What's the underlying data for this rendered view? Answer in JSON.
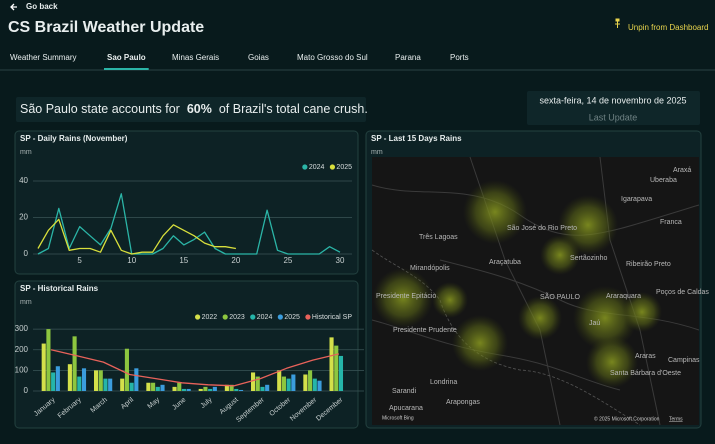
{
  "header": {
    "back": "Go back",
    "title": "CS Brazil Weather Update",
    "unpin": "Unpin from Dashboard"
  },
  "tabs": [
    "Weather Summary",
    "Sao Paulo",
    "Minas Gerais",
    "Goias",
    "Mato Grosso do Sul",
    "Parana",
    "Ports"
  ],
  "active_tab": 1,
  "banner": {
    "prefix": "São Paulo state accounts for",
    "highlight": "60%",
    "suffix": "of Brazil's total cane crush."
  },
  "update": {
    "date": "sexta-feira, 14 de novembro de 2025",
    "label": "Last Update"
  },
  "chart_data": [
    {
      "type": "line",
      "title": "SP - Daily Rains (November)",
      "y_label": "mm",
      "x": [
        1,
        2,
        3,
        4,
        5,
        6,
        7,
        8,
        9,
        10,
        11,
        12,
        13,
        14,
        15,
        16,
        17,
        18,
        19,
        20,
        21,
        22,
        23,
        24,
        25,
        26,
        27,
        28,
        29,
        30
      ],
      "xlim": [
        1,
        30
      ],
      "xticks": [
        5,
        10,
        15,
        20,
        25,
        30
      ],
      "ylim": [
        0,
        40
      ],
      "yticks": [
        0,
        20,
        40
      ],
      "grid": true,
      "legend": "top-right",
      "series": [
        {
          "name": "2024",
          "color": "#2bb5a7",
          "values": [
            0,
            3,
            25,
            3,
            15,
            10,
            5,
            14,
            33,
            0,
            0,
            0,
            3,
            10,
            5,
            8,
            12,
            3,
            0,
            0,
            0,
            0,
            24,
            2,
            0,
            0,
            0,
            0,
            4,
            1
          ]
        },
        {
          "name": "2025",
          "color": "#d8df3c",
          "values": [
            3,
            13,
            19,
            2,
            3,
            3,
            1,
            13,
            2,
            0,
            1,
            1,
            10,
            16,
            13,
            10,
            6,
            4,
            4,
            3,
            null,
            null,
            null,
            null,
            null,
            null,
            null,
            null,
            null,
            null
          ]
        }
      ]
    },
    {
      "type": "bar",
      "title": "SP - Historical Rains",
      "y_label": "mm",
      "categories": [
        "January",
        "February",
        "March",
        "April",
        "May",
        "June",
        "July",
        "August",
        "September",
        "October",
        "November",
        "December"
      ],
      "ylim": [
        0,
        320
      ],
      "yticks": [
        0,
        100,
        200,
        300
      ],
      "grid": true,
      "legend": "top-right",
      "series": [
        {
          "name": "2022",
          "color": "#d4e04a",
          "values": [
            230,
            130,
            100,
            60,
            40,
            20,
            10,
            30,
            90,
            100,
            80,
            260
          ]
        },
        {
          "name": "2023",
          "color": "#8dc63f",
          "values": [
            300,
            265,
            100,
            205,
            40,
            40,
            20,
            30,
            70,
            70,
            100,
            220
          ]
        },
        {
          "name": "2024",
          "color": "#25b5a9",
          "values": [
            90,
            70,
            60,
            40,
            20,
            10,
            10,
            10,
            20,
            60,
            60,
            170
          ]
        },
        {
          "name": "2025",
          "color": "#3b9ddd",
          "values": [
            120,
            110,
            60,
            110,
            30,
            10,
            20,
            5,
            30,
            80,
            50,
            null
          ]
        },
        {
          "name": "Historical SP",
          "type": "line",
          "color": "#e8625a",
          "values": [
            200,
            170,
            140,
            80,
            60,
            40,
            30,
            25,
            60,
            110,
            150,
            180
          ]
        }
      ]
    }
  ],
  "map": {
    "title": "SP - Last 15 Days Rains",
    "unit": "mm",
    "labels": [
      "Uberaba",
      "Araxá",
      "Igarapava",
      "Franca",
      "São José do Rio Preto",
      "Três Lagoas",
      "Araçatuba",
      "Mirandópolis",
      "Sertãozinho",
      "Ribeirão Preto",
      "SÃO PAULO",
      "Presidente Epitácio",
      "Araraquara",
      "Poços de Caldas",
      "Presidente Prudente",
      "Jaú",
      "Araras",
      "Santa Bárbara d'Oeste",
      "Campinas",
      "Londrina",
      "Sarandi",
      "Arapongas",
      "Apucarana"
    ],
    "provider": "Microsoft Bing",
    "copyright": "© 2025 Microsoft Corporation",
    "terms": "Terms"
  }
}
